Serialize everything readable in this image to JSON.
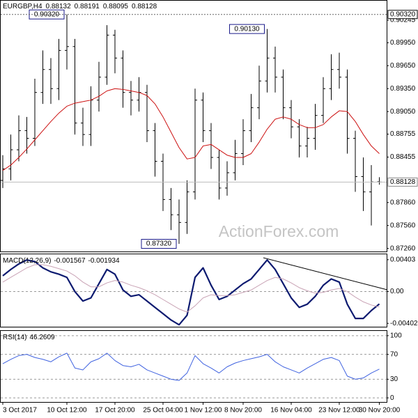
{
  "chart_data": [
    {
      "type": "ohlc",
      "title": "EURGBP,H4",
      "color": "#000000",
      "categories": [
        "3 Oct 2017",
        null,
        null,
        null,
        null,
        null,
        null,
        null,
        "10 Oct 12:00",
        null,
        null,
        null,
        null,
        null,
        "17 Oct 20:00",
        null,
        null,
        null,
        null,
        null,
        "25 Oct 04:00",
        null,
        null,
        null,
        null,
        "1 Nov 12:00",
        null,
        null,
        null,
        null,
        "8 Nov 20:00",
        null,
        null,
        null,
        null,
        null,
        "16 Nov 04:00",
        null,
        null,
        null,
        null,
        null,
        "23 Nov 12:00",
        null,
        null,
        null,
        null,
        "30 Nov 20:00"
      ],
      "open": [
        0.8815,
        0.883,
        0.8855,
        0.888,
        0.887,
        0.893,
        0.896,
        0.8935,
        0.8985,
        0.899,
        0.889,
        0.8875,
        0.892,
        0.895,
        0.9005,
        0.8975,
        0.893,
        0.892,
        0.893,
        0.888,
        0.884,
        0.879,
        0.877,
        0.876,
        0.88,
        0.892,
        0.888,
        0.8845,
        0.8805,
        0.8825,
        0.885,
        0.888,
        0.891,
        0.8945,
        0.8975,
        0.895,
        0.891,
        0.8885,
        0.886,
        0.887,
        0.89,
        0.8935,
        0.896,
        0.895,
        0.887,
        0.882,
        0.88,
        0.88132
      ],
      "high": [
        0.8848,
        0.8875,
        0.89,
        0.8898,
        0.8948,
        0.8985,
        0.8975,
        0.9,
        0.9032,
        0.9,
        0.891,
        0.8938,
        0.897,
        0.9018,
        0.9012,
        0.8985,
        0.8945,
        0.895,
        0.894,
        0.889,
        0.885,
        0.8805,
        0.879,
        0.8815,
        0.8935,
        0.893,
        0.889,
        0.8855,
        0.884,
        0.8868,
        0.8895,
        0.8928,
        0.8965,
        0.9013,
        0.899,
        0.896,
        0.892,
        0.8895,
        0.8885,
        0.8915,
        0.895,
        0.898,
        0.8982,
        0.896,
        0.888,
        0.8845,
        0.8835,
        0.88191
      ],
      "low": [
        0.8805,
        0.8815,
        0.884,
        0.885,
        0.886,
        0.8915,
        0.8915,
        0.892,
        0.896,
        0.8875,
        0.886,
        0.886,
        0.8905,
        0.894,
        0.8955,
        0.891,
        0.89,
        0.8905,
        0.8865,
        0.882,
        0.8775,
        0.875,
        0.8732,
        0.8745,
        0.879,
        0.8865,
        0.883,
        0.879,
        0.8795,
        0.8815,
        0.8835,
        0.8865,
        0.8895,
        0.893,
        0.893,
        0.8895,
        0.887,
        0.8845,
        0.8845,
        0.8855,
        0.889,
        0.892,
        0.8935,
        0.885,
        0.88,
        0.8775,
        0.8756,
        0.88095
      ],
      "close": [
        0.883,
        0.8855,
        0.888,
        0.887,
        0.893,
        0.896,
        0.8935,
        0.8985,
        0.899,
        0.889,
        0.8875,
        0.892,
        0.895,
        0.9005,
        0.8975,
        0.893,
        0.892,
        0.893,
        0.888,
        0.884,
        0.879,
        0.877,
        0.876,
        0.88,
        0.892,
        0.888,
        0.8845,
        0.8805,
        0.8825,
        0.885,
        0.888,
        0.891,
        0.8945,
        0.8975,
        0.895,
        0.891,
        0.8885,
        0.886,
        0.887,
        0.89,
        0.8935,
        0.896,
        0.895,
        0.887,
        0.882,
        0.88,
        0.8813,
        0.88128
      ],
      "series": [
        {
          "color": "#cc1010",
          "line_width": 1,
          "values": [
            0.8828,
            0.8835,
            0.8845,
            0.8856,
            0.8868,
            0.888,
            0.8892,
            0.8903,
            0.8912,
            0.8916,
            0.8918,
            0.892,
            0.8925,
            0.8932,
            0.8935,
            0.8934,
            0.8932,
            0.893,
            0.8926,
            0.8915,
            0.8898,
            0.8878,
            0.8858,
            0.8843,
            0.8845,
            0.886,
            0.8862,
            0.8855,
            0.8848,
            0.8845,
            0.8845,
            0.885,
            0.8865,
            0.8882,
            0.8895,
            0.8898,
            0.8895,
            0.8888,
            0.8884,
            0.8884,
            0.8888,
            0.8898,
            0.8906,
            0.8905,
            0.8892,
            0.8875,
            0.886,
            0.885
          ]
        }
      ],
      "ylim": [
        0.8722,
        0.905
      ],
      "yticks": [
        0.90245,
        {
          "value": 0.8995,
          "label": "0.89950"
        },
        {
          "value": 0.8965,
          "label": "0.89650"
        },
        {
          "value": 0.8935,
          "label": "0.89350"
        },
        {
          "value": 0.8905,
          "label": "0.89050"
        },
        0.88755,
        0.88455,
        {
          "value": 0.8786,
          "label": "0.87860"
        },
        {
          "value": 0.8756,
          "label": "0.87560"
        },
        {
          "value": 0.8726,
          "label": "0.87260"
        }
      ],
      "annotations": [
        {
          "value": 0.9032,
          "label": "0.90320"
        },
        {
          "value": 0.9013,
          "label": "0.90130"
        },
        {
          "value": 0.8732,
          "label": "0.87320"
        }
      ],
      "watermark": "ActionForex.com"
    },
    {
      "type": "line",
      "title": "MACD(12,26,9)",
      "series": [
        {
          "color": "#0c1a70",
          "line_width": 2.2,
          "values": [
            0.002,
            0.0028,
            0.0035,
            0.004,
            0.0038,
            0.003,
            0.0025,
            0.0022,
            0.0018,
            0.0,
            -0.0012,
            -0.0008,
            0.001,
            0.0028,
            0.0022,
            0.0002,
            -0.0006,
            -0.0004,
            -0.0012,
            -0.002,
            -0.0028,
            -0.0036,
            -0.0042,
            -0.003,
            0.0018,
            0.003,
            0.0008,
            -0.001,
            -0.0006,
            0.0002,
            0.001,
            0.0016,
            0.0028,
            0.004,
            0.0028,
            0.001,
            -0.0008,
            -0.002,
            -0.0016,
            -0.0006,
            0.0008,
            0.0016,
            0.0012,
            -0.0016,
            -0.0034,
            -0.0034,
            -0.0024,
            -0.001567
          ]
        },
        {
          "color": "#c9a3b5",
          "line_width": 1,
          "values": [
            0.0012,
            0.0018,
            0.0024,
            0.003,
            0.0034,
            0.0034,
            0.0032,
            0.0029,
            0.0026,
            0.002,
            0.0012,
            0.0006,
            0.0006,
            0.0011,
            0.0014,
            0.0012,
            0.0008,
            0.0005,
            0.0001,
            -0.0004,
            -0.001,
            -0.0016,
            -0.0022,
            -0.0026,
            -0.0018,
            -0.0008,
            -0.0004,
            -0.0005,
            -0.0005,
            -0.0004,
            -0.0001,
            0.0002,
            0.0008,
            0.0014,
            0.0018,
            0.0016,
            0.0011,
            0.0005,
            0.0001,
            -0.0002,
            -0.0001,
            0.0002,
            0.0004,
            0.0,
            -0.0007,
            -0.0013,
            -0.0017,
            -0.001934
          ]
        }
      ],
      "ylim": [
        -0.00445,
        0.00472
      ],
      "yticks": [
        0.00403,
        {
          "value": 0,
          "label": "0.00"
        },
        -0.004021
      ],
      "grid": false
    },
    {
      "type": "line",
      "title": "RSI(14)",
      "series": [
        {
          "color": "#3f62e0",
          "line_width": 1,
          "values": [
            55,
            62,
            68,
            70,
            65,
            62,
            58,
            66,
            72,
            48,
            45,
            58,
            63,
            72,
            60,
            52,
            50,
            54,
            45,
            40,
            35,
            30,
            28,
            40,
            68,
            55,
            48,
            40,
            50,
            56,
            60,
            63,
            66,
            70,
            58,
            50,
            45,
            40,
            48,
            55,
            62,
            65,
            60,
            35,
            30,
            32,
            40,
            46.2609
          ]
        }
      ],
      "ylim": [
        -6.6,
        107.7
      ],
      "yticks": [
        100,
        70,
        30,
        0
      ],
      "grid": true
    }
  ]
}
